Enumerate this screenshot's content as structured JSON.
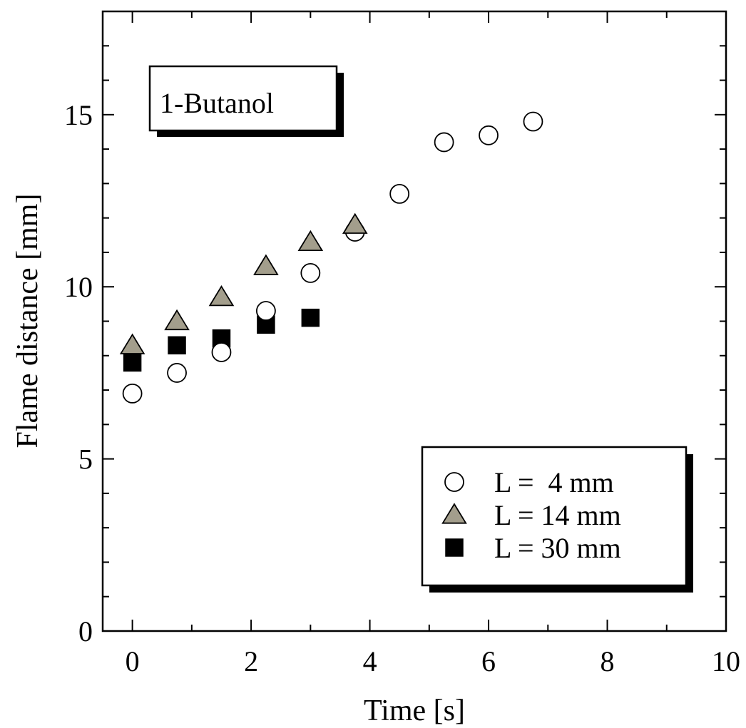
{
  "chart_data": {
    "type": "scatter",
    "title": "",
    "annotation": "1-Butanol",
    "xlabel": "Time  [s]",
    "ylabel": "Flame distance  [mm]",
    "xlim": [
      -0.5,
      10
    ],
    "ylim": [
      0,
      18
    ],
    "x_ticks": [
      0,
      2,
      4,
      6,
      8,
      10
    ],
    "y_ticks": [
      0,
      5,
      10,
      15
    ],
    "x_tick_labels": [
      "0",
      "2",
      "4",
      "6",
      "8",
      "10"
    ],
    "y_tick_labels": [
      "0",
      "5",
      "10",
      "15"
    ],
    "legend_position": "bottom-right",
    "series": [
      {
        "name": "L =  4 mm",
        "marker": "open-circle",
        "color": "#ffffff",
        "stroke": "#000000",
        "x": [
          0,
          0.75,
          1.5,
          2.25,
          3.0,
          3.75,
          4.5,
          5.25,
          6.0,
          6.75
        ],
        "y": [
          6.9,
          7.5,
          8.1,
          9.3,
          10.4,
          11.6,
          12.7,
          14.2,
          14.4,
          14.8
        ]
      },
      {
        "name": "L = 14 mm",
        "marker": "triangle",
        "color": "#a39e8c",
        "stroke": "#000000",
        "x": [
          0,
          0.75,
          1.5,
          2.25,
          3.0,
          3.75
        ],
        "y": [
          8.3,
          9.0,
          9.7,
          10.6,
          11.3,
          11.8
        ]
      },
      {
        "name": "L = 30 mm",
        "marker": "filled-square",
        "color": "#000000",
        "stroke": "#000000",
        "x": [
          0,
          0.75,
          1.5,
          2.25,
          3.0
        ],
        "y": [
          7.8,
          8.3,
          8.5,
          8.9,
          9.1
        ]
      }
    ]
  }
}
